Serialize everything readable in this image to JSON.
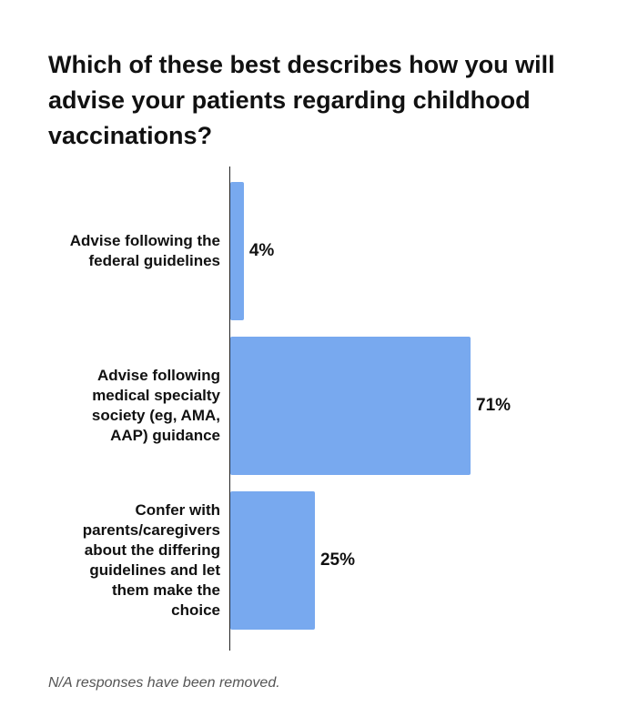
{
  "chart_data": {
    "type": "bar",
    "orientation": "horizontal",
    "title": "Which of these best describes how you will advise your patients regarding childhood vaccinations?",
    "categories": [
      [
        "Advise following the",
        "federal guidelines"
      ],
      [
        "Advise following",
        "medical specialty",
        "society (eg, AMA,",
        "AAP) guidance"
      ],
      [
        "Confer with",
        "parents/caregivers",
        "about the differing",
        "guidelines and let",
        "them make the",
        "choice"
      ]
    ],
    "values": [
      4,
      71,
      25
    ],
    "value_labels": [
      "4%",
      "71%",
      "25%"
    ],
    "xlim": [
      0,
      71
    ],
    "bar_color": "#78a9ef",
    "grid": false,
    "legend": "none"
  },
  "footnote": "N/A responses have been removed."
}
